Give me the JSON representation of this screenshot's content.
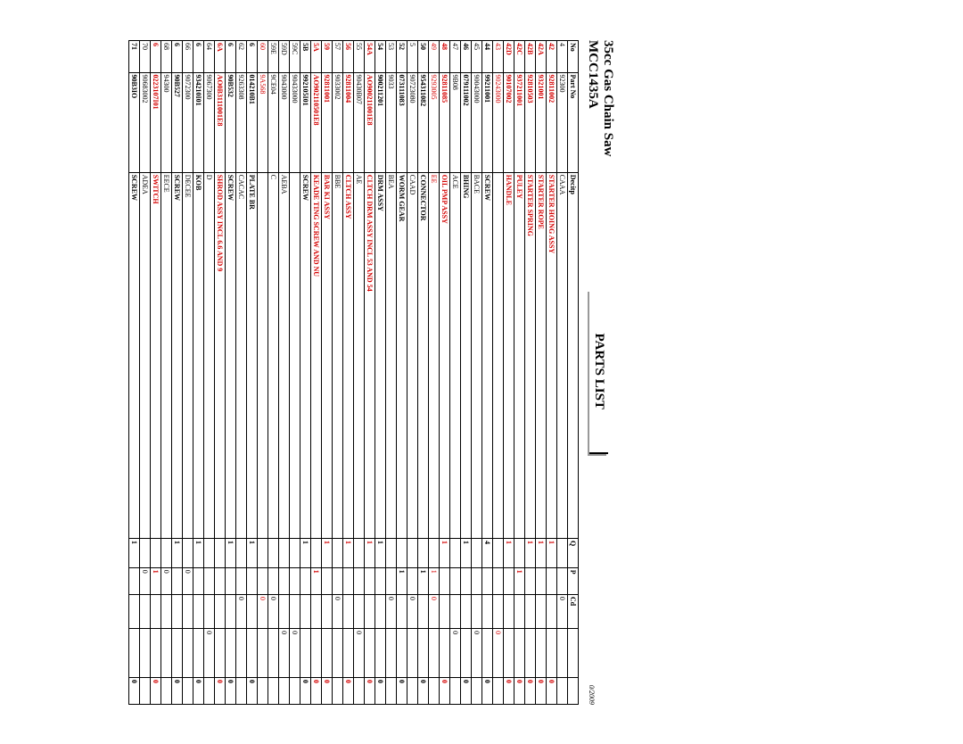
{
  "header": {
    "title1": "35cc Gas Chain Saw",
    "title2": "MCC1435A",
    "parts_list": "PARTS  LIST",
    "date": "0/2009"
  },
  "columns": [
    "No",
    "Part No",
    "Decitp",
    "Q",
    "P",
    "Cd",
    "",
    ""
  ],
  "rows": [
    {
      "no": "4",
      "part": "92300",
      "desc": "CAAA",
      "q": "",
      "p": "",
      "cd": "0",
      "x1": "",
      "x2": "",
      "bold": false,
      "red": false
    },
    {
      "no": "42",
      "part": "92811002",
      "desc": "STARTER HOING ASSY",
      "q": "1",
      "p": "",
      "cd": "",
      "x1": "",
      "x2": "0",
      "bold": true,
      "red": true
    },
    {
      "no": "42A",
      "part": "9321001",
      "desc": "STARTER ROPE",
      "q": "1",
      "p": "",
      "cd": "",
      "x1": "",
      "x2": "0",
      "bold": true,
      "red": true
    },
    {
      "no": "42B",
      "part": "92810503",
      "desc": "STARTER SPRING",
      "q": "1",
      "p": "",
      "cd": "",
      "x1": "",
      "x2": "0",
      "bold": true,
      "red": true
    },
    {
      "no": "42C",
      "part": "937211001",
      "desc": "PULEY",
      "q": "",
      "p": "1",
      "cd": "",
      "x1": "",
      "x2": "0",
      "bold": true,
      "red": true
    },
    {
      "no": "42D",
      "part": "90107002",
      "desc": "HANDLE",
      "q": "1",
      "p": "",
      "cd": "",
      "x1": "",
      "x2": "0",
      "bold": true,
      "red": true
    },
    {
      "no": "43",
      "part": "90243000",
      "desc": "",
      "q": "",
      "p": "",
      "cd": "",
      "x1": "0",
      "x2": "",
      "bold": false,
      "red": true
    },
    {
      "no": "44",
      "part": "99211001",
      "desc": "SCREW",
      "q": "4",
      "p": "",
      "cd": "",
      "x1": "",
      "x2": "0",
      "bold": true,
      "red": false
    },
    {
      "no": "45",
      "part": "90043000",
      "desc": "BACE",
      "q": "",
      "p": "",
      "cd": "",
      "x1": "0",
      "x2": "",
      "bold": false,
      "red": false
    },
    {
      "no": "46",
      "part": "079111002",
      "desc": "BHING",
      "q": "1",
      "p": "",
      "cd": "",
      "x1": "",
      "x2": "0",
      "bold": true,
      "red": false
    },
    {
      "no": "47",
      "part": "9B08",
      "desc": "ACE",
      "q": "",
      "p": "",
      "cd": "",
      "x1": "0",
      "x2": "",
      "bold": false,
      "red": false
    },
    {
      "no": "48",
      "part": "92811085",
      "desc": "OIL PMP ASSY",
      "q": "1",
      "p": "",
      "cd": "",
      "x1": "",
      "x2": "0",
      "bold": true,
      "red": true
    },
    {
      "no": "49",
      "part": "9293005",
      "desc": "EE",
      "q": "",
      "p": "1",
      "cd": "0",
      "x1": "",
      "x2": "",
      "bold": false,
      "red": true
    },
    {
      "no": "50",
      "part": "954311082",
      "desc": "CONNECTOR",
      "q": "",
      "p": "1",
      "cd": "",
      "x1": "",
      "x2": "0",
      "bold": true,
      "red": false
    },
    {
      "no": "5",
      "part": "90723080",
      "desc": "CAAD",
      "q": "",
      "p": "",
      "cd": "0",
      "x1": "",
      "x2": "",
      "bold": false,
      "red": false
    },
    {
      "no": "52",
      "part": "073111083",
      "desc": "WORM GEAR",
      "q": "",
      "p": "1",
      "cd": "",
      "x1": "",
      "x2": "0",
      "bold": true,
      "red": false
    },
    {
      "no": "53",
      "part": "9033",
      "desc": "BEA",
      "q": "",
      "p": "",
      "cd": "0",
      "x1": "",
      "x2": "",
      "bold": false,
      "red": false
    },
    {
      "no": "54",
      "part": "900211201",
      "desc": "DRM ASSY",
      "q": "1",
      "p": "",
      "cd": "",
      "x1": "",
      "x2": "0",
      "bold": true,
      "red": false
    },
    {
      "no": "54A",
      "part": "AO900211001E8",
      "desc": "CLTCH DRM ASSY   INCL 53 AND 54",
      "q": "1",
      "p": "",
      "cd": "",
      "x1": "",
      "x2": "0",
      "bold": true,
      "red": true
    },
    {
      "no": "55",
      "part": "90430B07",
      "desc": "AE",
      "q": "",
      "p": "",
      "cd": "",
      "x1": "0",
      "x2": "",
      "bold": false,
      "red": false
    },
    {
      "no": "56",
      "part": "92811004",
      "desc": "CLTCH ASSY",
      "q": "1",
      "p": "",
      "cd": "",
      "x1": "",
      "x2": "0",
      "bold": true,
      "red": true
    },
    {
      "no": "57",
      "part": "9033002",
      "desc": "BBE",
      "q": "",
      "p": "",
      "cd": "0",
      "x1": "",
      "x2": "",
      "bold": false,
      "red": false
    },
    {
      "no": "59",
      "part": "92811001",
      "desc": "BAR KI ASSY",
      "q": "1",
      "p": "",
      "cd": "",
      "x1": "",
      "x2": "0",
      "bold": true,
      "red": true
    },
    {
      "no": "5A",
      "part": "AO902110501E8",
      "desc": "KEADE                 TING SCREW AND NU",
      "q": "",
      "p": "1",
      "cd": "",
      "x1": "",
      "x2": "0",
      "bold": true,
      "red": true
    },
    {
      "no": "5B",
      "part": "992105I01",
      "desc": "SCREW",
      "q": "1",
      "p": "",
      "cd": "",
      "x1": "",
      "x2": "0",
      "bold": true,
      "red": false
    },
    {
      "no": "59C",
      "part": "90433000",
      "desc": "",
      "q": "",
      "p": "",
      "cd": "",
      "x1": "0",
      "x2": "",
      "bold": false,
      "red": false
    },
    {
      "no": "59D",
      "part": "9043000",
      "desc": "AEBA",
      "q": "",
      "p": "",
      "cd": "",
      "x1": "0",
      "x2": "",
      "bold": false,
      "red": false
    },
    {
      "no": "59E",
      "part": "9CE04",
      "desc": "C",
      "q": "",
      "p": "",
      "cd": "0",
      "x1": "",
      "x2": "",
      "bold": false,
      "red": false
    },
    {
      "no": "60",
      "part": "9A568",
      "desc": "",
      "q": "",
      "p": "",
      "cd": "0",
      "x1": "",
      "x2": "",
      "bold": false,
      "red": true
    },
    {
      "no": "6",
      "part": "014210B1",
      "desc": "PLATE BR",
      "q": "1",
      "p": "",
      "cd": "",
      "x1": "",
      "x2": "0",
      "bold": true,
      "red": false
    },
    {
      "no": "62",
      "part": "9263308",
      "desc": "CACAC",
      "q": "",
      "p": "",
      "cd": "0",
      "x1": "",
      "x2": "",
      "bold": false,
      "red": false
    },
    {
      "no": "6",
      "part": "90B532",
      "desc": "SCREW",
      "q": "1",
      "p": "",
      "cd": "",
      "x1": "",
      "x2": "0",
      "bold": true,
      "red": false
    },
    {
      "no": "6A",
      "part": "AO0B3111001E8",
      "desc": "SHROD ASSY   INCL 6.6 AND 9",
      "q": "",
      "p": "",
      "cd": "",
      "x1": "",
      "x2": "0",
      "bold": true,
      "red": true
    },
    {
      "no": "64",
      "part": "9067300",
      "desc": "D",
      "q": "",
      "p": "",
      "cd": "",
      "x1": "0",
      "x2": "",
      "bold": false,
      "red": false
    },
    {
      "no": "6",
      "part": "934210I01",
      "desc": "KOB",
      "q": "1",
      "p": "",
      "cd": "",
      "x1": "",
      "x2": "0",
      "bold": true,
      "red": false
    },
    {
      "no": "66",
      "part": "9072300",
      "desc": "DECEE",
      "q": "",
      "p": "0",
      "cd": "",
      "x1": "",
      "x2": "",
      "bold": false,
      "red": false
    },
    {
      "no": "6",
      "part": "90B527",
      "desc": "SCREW",
      "q": "1",
      "p": "",
      "cd": "",
      "x1": "",
      "x2": "0",
      "bold": true,
      "red": false
    },
    {
      "no": "68",
      "part": "94300",
      "desc": "EECE",
      "q": "",
      "p": "0",
      "cd": "",
      "x1": "",
      "x2": "",
      "bold": false,
      "red": false
    },
    {
      "no": "6",
      "part": "0223107I01",
      "desc": "SWITCH",
      "q": "",
      "p": "1",
      "cd": "",
      "x1": "",
      "x2": "0",
      "bold": true,
      "red": true
    },
    {
      "no": "70",
      "part": "90683002",
      "desc": "ADEA",
      "q": "",
      "p": "0",
      "cd": "",
      "x1": "",
      "x2": "",
      "bold": false,
      "red": false
    },
    {
      "no": "71",
      "part": "90B3IO",
      "desc": "SCREW",
      "q": "1",
      "p": "",
      "cd": "",
      "x1": "",
      "x2": "0",
      "bold": true,
      "red": false
    }
  ]
}
